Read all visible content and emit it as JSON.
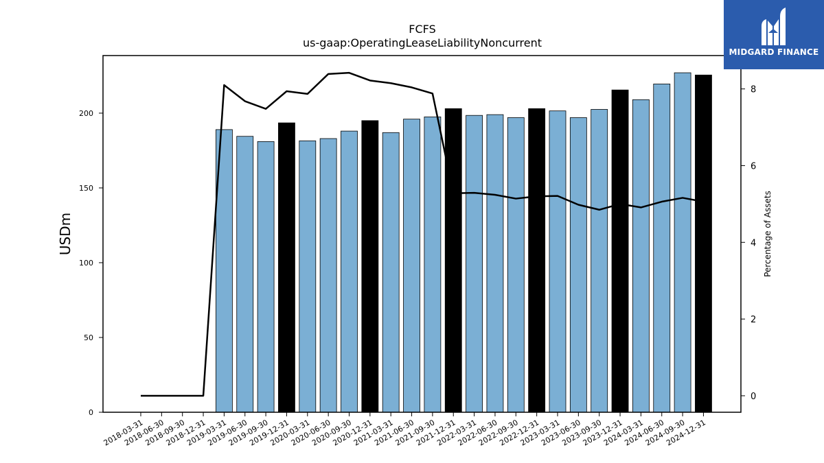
{
  "chart_data": {
    "type": "bar",
    "title": "FCFS",
    "subtitle": "us-gaap:OperatingLeaseLiabilityNoncurrent",
    "ylabel": "USDm",
    "ylabel_right": "Percentage of Assets",
    "ylim": [
      0,
      238.5
    ],
    "ylim_right": [
      -0.43,
      8.87
    ],
    "yticks": [
      0,
      50,
      100,
      150,
      200
    ],
    "yticks_right": [
      0,
      2,
      4,
      6,
      8
    ],
    "grid": false,
    "categories": [
      "2018-03-31",
      "2018-06-30",
      "2018-09-30",
      "2018-12-31",
      "2019-03-31",
      "2019-06-30",
      "2019-09-30",
      "2019-12-31",
      "2020-03-31",
      "2020-06-30",
      "2020-09-30",
      "2020-12-31",
      "2021-03-31",
      "2021-06-30",
      "2021-09-30",
      "2021-12-31",
      "2022-03-31",
      "2022-06-30",
      "2022-09-30",
      "2022-12-31",
      "2023-03-31",
      "2023-06-30",
      "2023-09-30",
      "2023-12-31",
      "2024-03-31",
      "2024-06-30",
      "2024-09-30",
      "2024-12-31"
    ],
    "series": [
      {
        "type": "bar",
        "values": [
          null,
          null,
          null,
          null,
          189,
          184.5,
          181,
          193.5,
          181.5,
          183,
          188,
          195,
          187,
          196,
          197.5,
          203,
          198.5,
          199,
          197,
          203,
          201.5,
          197,
          202.5,
          215.5,
          209,
          219.5,
          227,
          225.5
        ],
        "color": "#7bafd4",
        "highlight_color": "#000000",
        "highlight_categories": [
          "2019-12-31",
          "2020-12-31",
          "2021-12-31",
          "2022-12-31",
          "2023-12-31",
          "2024-12-31"
        ]
      },
      {
        "type": "line",
        "axis": "right",
        "values": [
          0,
          0,
          0,
          0,
          8.1,
          7.68,
          7.48,
          7.94,
          7.87,
          8.39,
          8.42,
          8.22,
          8.15,
          8.04,
          7.88,
          5.28,
          5.29,
          5.24,
          5.14,
          5.2,
          5.21,
          4.98,
          4.85,
          5.0,
          4.91,
          5.06,
          5.16,
          5.06
        ],
        "color": "#000000"
      }
    ]
  },
  "logo": {
    "text": "MIDGARD FINANCE",
    "background": "#2b5cad"
  }
}
